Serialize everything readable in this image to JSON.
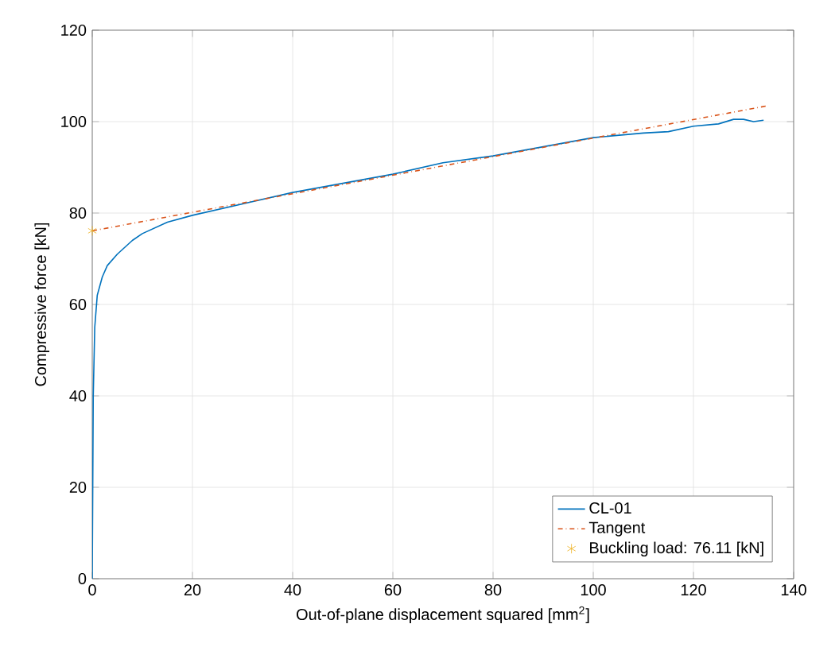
{
  "chart_data": {
    "type": "line",
    "xlabel": "Out-of-plane displacement squared [mm$^{2}$]",
    "ylabel": "Compressive force [kN]",
    "xlim": [
      0,
      140
    ],
    "ylim": [
      0,
      120
    ],
    "xticks": [
      0,
      20,
      40,
      60,
      80,
      100,
      120,
      140
    ],
    "yticks": [
      0,
      20,
      40,
      60,
      80,
      100,
      120
    ],
    "grid": true,
    "legend": "bottom right",
    "series": [
      {
        "name": "CL-01",
        "color": "#0072bd",
        "line_style": "solid",
        "x": [
          0,
          0.1,
          0.2,
          0.5,
          1,
          2,
          3,
          5,
          8,
          10,
          15,
          20,
          30,
          40,
          50,
          60,
          70,
          80,
          90,
          100,
          110,
          115,
          120,
          125,
          128,
          130,
          132,
          134
        ],
        "values": [
          0,
          20,
          40,
          55,
          62,
          66,
          68.5,
          71,
          74,
          75.5,
          78,
          79.5,
          82,
          84.5,
          86.5,
          88.5,
          91,
          92.5,
          94.5,
          96.5,
          97.5,
          97.8,
          99,
          99.5,
          100.5,
          100.5,
          100,
          100.3
        ]
      },
      {
        "name": "Tangent",
        "color": "#d95319",
        "line_style": "dashdot",
        "x": [
          0,
          135
        ],
        "values": [
          76.11,
          103.5
        ]
      },
      {
        "name": "Buckling load: 76.11 [kN]",
        "type": "scatter",
        "color": "#edb120",
        "marker": "cross",
        "x": [
          0
        ],
        "values": [
          76.11
        ]
      }
    ]
  }
}
